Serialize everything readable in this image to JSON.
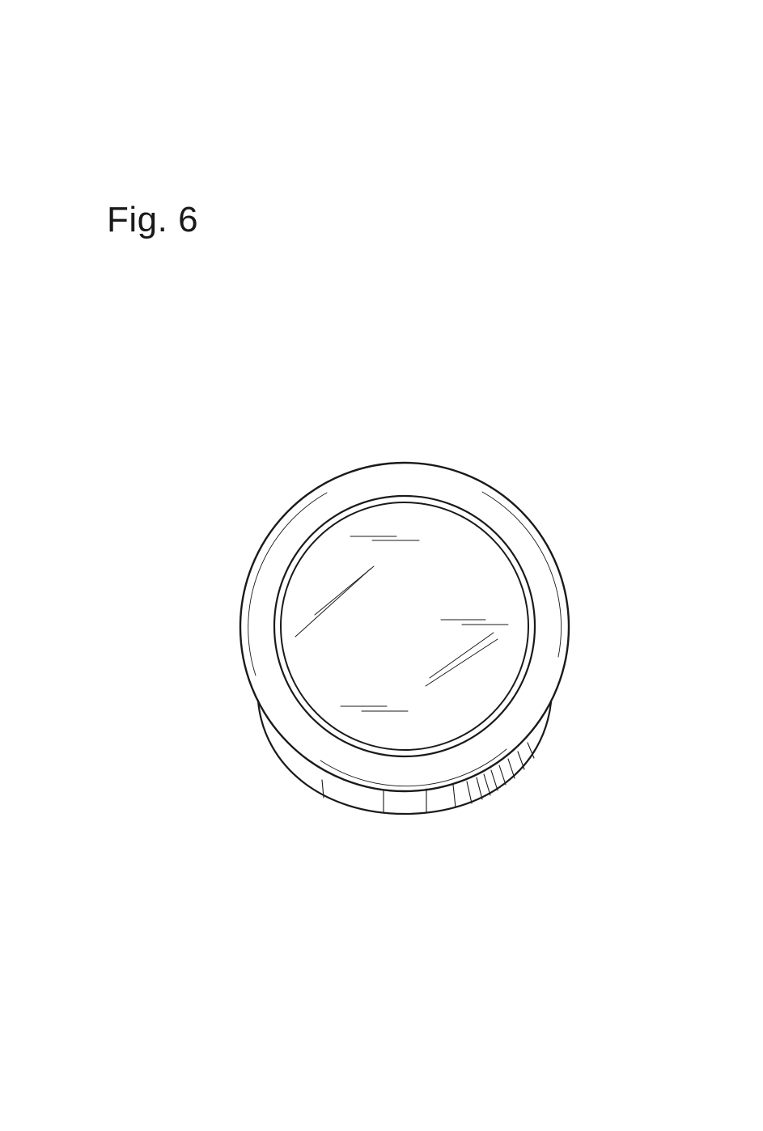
{
  "figure": {
    "label": "Fig. 6"
  },
  "colors": {
    "line": "#1a1a1a",
    "background": "#ffffff"
  }
}
